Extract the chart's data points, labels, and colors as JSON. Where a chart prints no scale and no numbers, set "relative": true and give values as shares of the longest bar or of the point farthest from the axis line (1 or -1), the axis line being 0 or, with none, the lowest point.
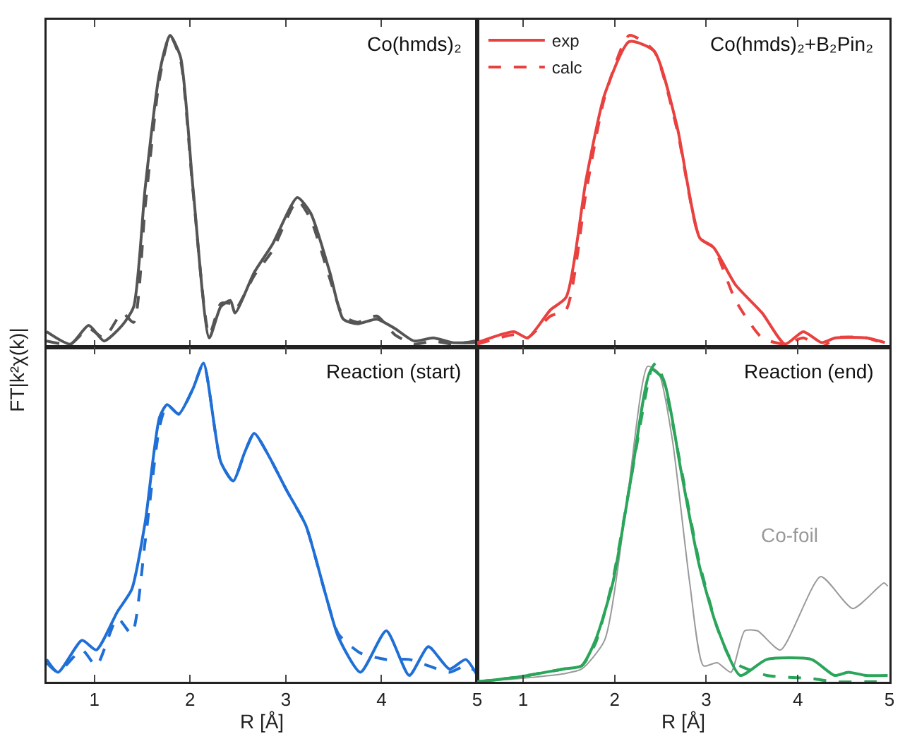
{
  "chart_data": [
    {
      "type": "line",
      "title": "Co(hmds)₂",
      "ylabel": "FT|k²χ(k)|",
      "relative": true,
      "xlim": [
        0.5,
        5
      ],
      "xticks": [
        1,
        2,
        3,
        4,
        5
      ],
      "tick_labels": false,
      "legend": false,
      "x": [
        0.5,
        0.75,
        0.94,
        1.1,
        1.29,
        1.41,
        1.53,
        1.68,
        1.79,
        1.9,
        2.03,
        2.2,
        2.32,
        2.42,
        2.47,
        2.67,
        2.86,
        3.12,
        3.26,
        3.46,
        3.6,
        3.75,
        3.95,
        4.14,
        4.34,
        4.54,
        4.74,
        4.98
      ],
      "series": [
        {
          "color": "#555555",
          "line_style": "solid",
          "values": [
            0.05,
            0.01,
            0.07,
            0.02,
            0.07,
            0.13,
            0.51,
            0.88,
            1.0,
            0.93,
            0.51,
            0.03,
            0.13,
            0.15,
            0.11,
            0.24,
            0.33,
            0.48,
            0.43,
            0.24,
            0.09,
            0.075,
            0.09,
            0.06,
            0.02,
            0.03,
            0.015,
            0.015
          ]
        },
        {
          "color": "#555555",
          "line_style": "dashed",
          "values": [
            0.02,
            0.01,
            0.06,
            0.03,
            0.11,
            0.08,
            0.45,
            0.86,
            1.0,
            0.92,
            0.5,
            0.04,
            0.14,
            0.14,
            0.12,
            0.23,
            0.31,
            0.47,
            0.41,
            0.22,
            0.1,
            0.08,
            0.1,
            0.04,
            0.01,
            0.02,
            0.01,
            0.02
          ]
        }
      ]
    },
    {
      "type": "line",
      "title": "Co(hmds)₂+B₂Pin₂",
      "relative": true,
      "xlim": [
        0.5,
        5
      ],
      "xticks": [
        1,
        2,
        3,
        4,
        5
      ],
      "tick_labels": false,
      "legend": "top left",
      "x": [
        0.5,
        0.9,
        1.05,
        1.3,
        1.47,
        1.69,
        1.89,
        2.16,
        2.43,
        2.68,
        2.93,
        3.08,
        3.32,
        3.61,
        3.86,
        4.06,
        4.26,
        4.41,
        4.75,
        4.95
      ],
      "series": [
        {
          "name": "exp",
          "color": "#e8413f",
          "line_style": "solid",
          "values": [
            0.015,
            0.05,
            0.03,
            0.12,
            0.16,
            0.54,
            0.81,
            0.98,
            0.95,
            0.71,
            0.35,
            0.32,
            0.2,
            0.11,
            0.01,
            0.05,
            0.015,
            0.03,
            0.03,
            0.015
          ]
        },
        {
          "name": "calc",
          "color": "#e8413f",
          "line_style": "dashed",
          "values": [
            0.01,
            0.04,
            0.03,
            0.1,
            0.12,
            0.5,
            0.8,
            1.0,
            0.95,
            0.7,
            0.35,
            0.32,
            0.15,
            0.03,
            0.01,
            0.03,
            0.0,
            0.03,
            0.03,
            0.01
          ]
        }
      ]
    },
    {
      "type": "line",
      "title": "Reaction (start)",
      "xlabel": "R [Å]",
      "relative": true,
      "xlim": [
        0.5,
        5
      ],
      "xticks": [
        1,
        2,
        3,
        4,
        5
      ],
      "tick_labels": "x",
      "legend": false,
      "x": [
        0.5,
        0.62,
        0.87,
        1.02,
        1.24,
        1.39,
        1.53,
        1.68,
        1.76,
        1.88,
        2.03,
        2.14,
        2.32,
        2.45,
        2.57,
        2.67,
        2.82,
        3.01,
        3.21,
        3.41,
        3.55,
        3.78,
        4.05,
        4.29,
        4.49,
        4.71,
        4.88,
        5.0
      ],
      "series": [
        {
          "color": "#1f6fd6",
          "line_style": "solid",
          "values": [
            0.07,
            0.03,
            0.13,
            0.1,
            0.22,
            0.29,
            0.5,
            0.83,
            0.87,
            0.84,
            0.92,
            1.0,
            0.69,
            0.63,
            0.72,
            0.78,
            0.71,
            0.6,
            0.49,
            0.28,
            0.14,
            0.03,
            0.16,
            0.02,
            0.11,
            0.04,
            0.07,
            0.02
          ]
        },
        {
          "color": "#1f6fd6",
          "line_style": "dashed",
          "values": [
            0.06,
            0.03,
            0.1,
            0.05,
            0.2,
            0.15,
            0.44,
            0.8,
            0.87,
            0.84,
            0.92,
            1.0,
            0.69,
            0.63,
            0.72,
            0.78,
            0.71,
            0.6,
            0.49,
            0.28,
            0.15,
            0.09,
            0.07,
            0.07,
            0.05,
            0.03,
            0.05,
            0.03
          ]
        }
      ]
    },
    {
      "type": "line",
      "title": "Reaction (end)",
      "xlabel": "R [Å]",
      "relative": true,
      "xlim": [
        0.5,
        5
      ],
      "xticks": [
        1,
        2,
        3,
        4,
        5
      ],
      "tick_labels": "x",
      "legend": false,
      "series": [
        {
          "name": "Co-foil",
          "color": "#999999",
          "line_style": "solid",
          "x": [
            0.5,
            0.95,
            1.44,
            1.64,
            1.89,
            2.14,
            2.36,
            2.48,
            2.63,
            2.82,
            2.97,
            3.12,
            3.27,
            3.42,
            3.56,
            3.81,
            4.25,
            4.6,
            4.94,
            4.98
          ],
          "values": [
            0,
            0.01,
            0.025,
            0.04,
            0.13,
            0.58,
            0.99,
            0.97,
            0.76,
            0.31,
            0.05,
            0.06,
            0.03,
            0.16,
            0.16,
            0.1,
            0.33,
            0.23,
            0.31,
            0.3
          ]
        },
        {
          "color": "#2aa55a",
          "line_style": "solid",
          "x": [
            0.5,
            0.95,
            1.44,
            1.64,
            1.79,
            1.98,
            2.18,
            2.4,
            2.53,
            2.72,
            2.92,
            3.12,
            3.37,
            3.66,
            4.15,
            4.4,
            4.55,
            4.74,
            4.98
          ],
          "values": [
            0,
            0.015,
            0.04,
            0.05,
            0.13,
            0.31,
            0.64,
            0.98,
            0.95,
            0.67,
            0.37,
            0.17,
            0.02,
            0.07,
            0.07,
            0.02,
            0.03,
            0.02,
            0.02
          ]
        },
        {
          "color": "#2aa55a",
          "line_style": "dashed",
          "x": [
            0.5,
            0.95,
            1.44,
            1.64,
            1.79,
            1.98,
            2.18,
            2.4,
            2.45,
            2.53,
            2.72,
            2.92,
            3.12,
            3.25,
            3.37,
            3.66,
            4.15,
            4.4,
            4.74,
            4.98
          ],
          "values": [
            0,
            0.015,
            0.04,
            0.05,
            0.12,
            0.32,
            0.64,
            0.98,
            1.0,
            0.95,
            0.68,
            0.38,
            0.17,
            0.08,
            0.05,
            0.02,
            0.01,
            0.0,
            0.0,
            0.0
          ]
        }
      ]
    }
  ]
}
